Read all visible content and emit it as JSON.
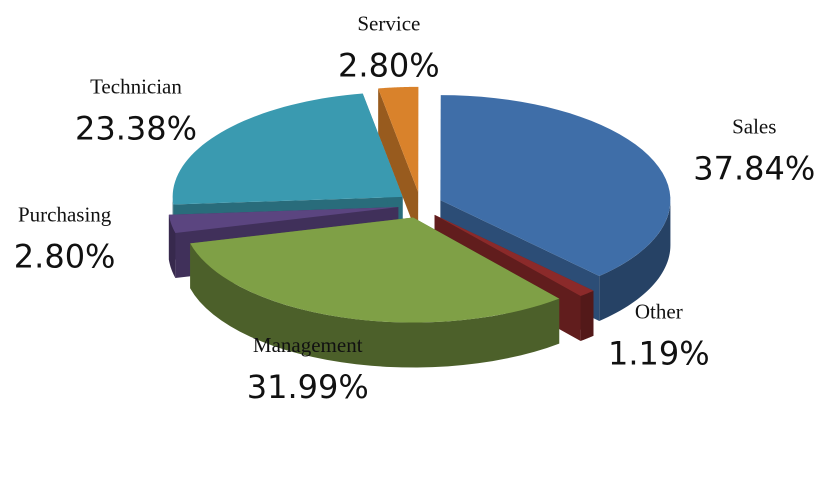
{
  "chart_data": {
    "type": "pie",
    "categories": [
      "Service",
      "Sales",
      "Other",
      "Management",
      "Purchasing",
      "Technician"
    ],
    "values": [
      2.8,
      37.84,
      1.19,
      31.99,
      2.8,
      23.38
    ],
    "value_labels": [
      "2.80%",
      "37.84%",
      "1.19%",
      "31.99%",
      "2.80%",
      "23.38%"
    ],
    "colors": [
      "#d9822b",
      "#3f6ea8",
      "#8b2a2a",
      "#7fa046",
      "#5b4580",
      "#3a9ab0"
    ]
  }
}
